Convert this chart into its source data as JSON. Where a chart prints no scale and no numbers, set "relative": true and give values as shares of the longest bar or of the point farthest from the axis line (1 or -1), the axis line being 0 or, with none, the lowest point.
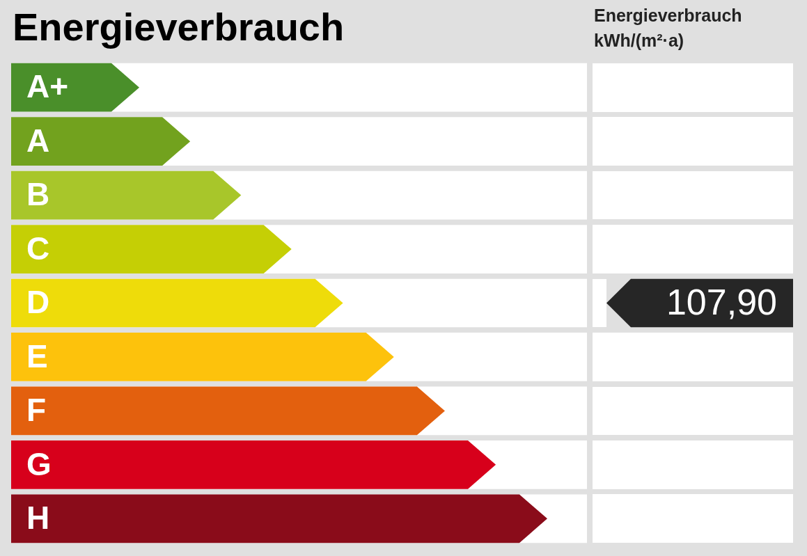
{
  "chart_data": {
    "type": "bar",
    "orientation": "horizontal",
    "relative": true,
    "title": "Energieverbrauch",
    "categories": [
      "A+",
      "A",
      "B",
      "C",
      "D",
      "E",
      "F",
      "G",
      "H"
    ],
    "values": [
      0.239,
      0.334,
      0.429,
      0.523,
      0.619,
      0.714,
      0.809,
      0.904,
      1
    ],
    "colors": [
      "#4a8f2a",
      "#72a21e",
      "#a8c62a",
      "#c5cf05",
      "#eedc0a",
      "#fdc20c",
      "#e3600e",
      "#d7001b",
      "#8a0c1a"
    ],
    "annotations": [
      "Energieverbrauch kWh/(m²·a)",
      "107,90"
    ],
    "grid": false,
    "legend": false,
    "tick_labels": "y"
  }
}
